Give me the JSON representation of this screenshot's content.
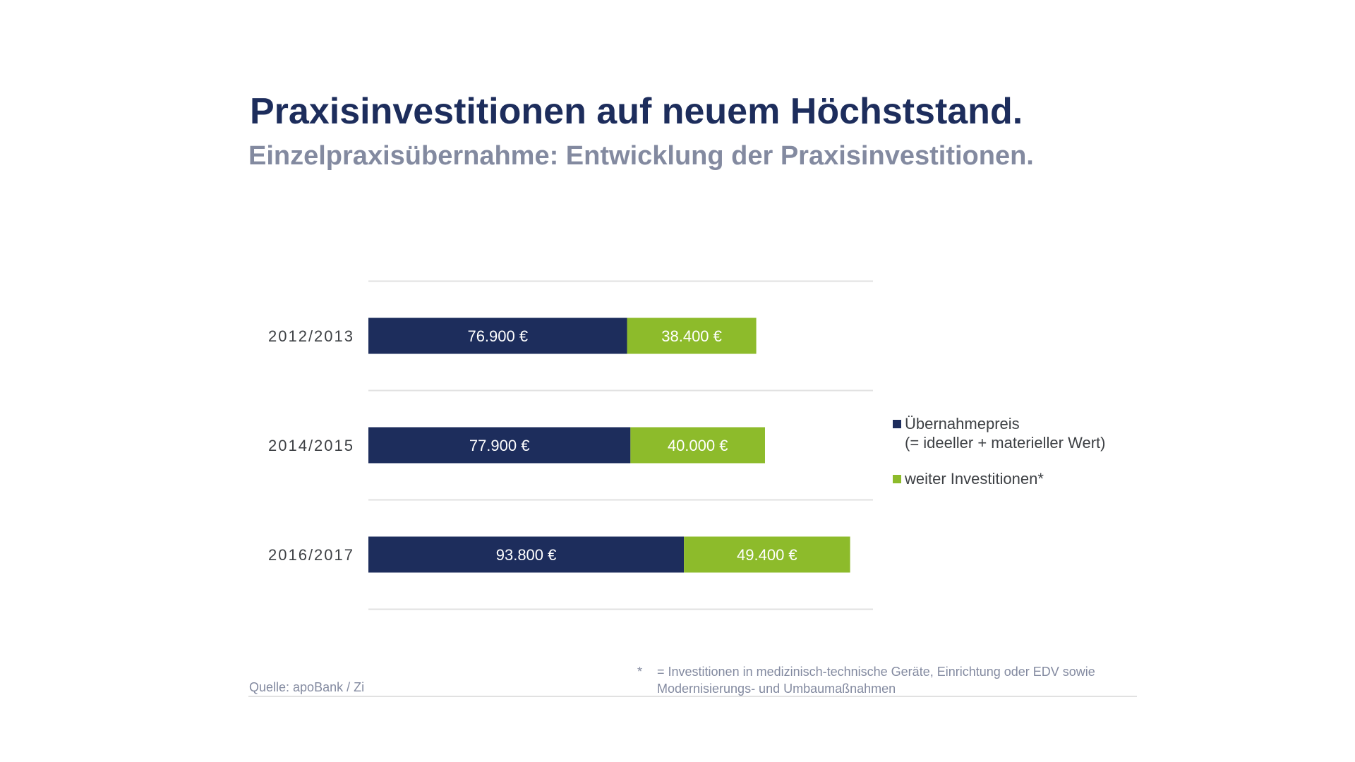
{
  "title": "Praxisinvestitionen auf neuem Höchststand.",
  "subtitle": "Einzelpraxisübernahme: Entwicklung der Praxisinvestitionen.",
  "colors": {
    "navy": "#1d2d5c",
    "green": "#8dbb2b",
    "gray_text": "#838aa0",
    "grid": "#e1e1e1"
  },
  "chart_data": {
    "type": "bar",
    "orientation": "horizontal",
    "stacked": true,
    "categories": [
      "2012/2013",
      "2014/2015",
      "2016/2017"
    ],
    "series": [
      {
        "name": "Übernahmepreis (= ideeller + materieller Wert)",
        "color": "#1d2d5c",
        "values": [
          76900,
          77900,
          93800
        ],
        "labels": [
          "76.900 €",
          "77.900 €",
          "93.800 €"
        ]
      },
      {
        "name": "weiter Investitionen*",
        "color": "#8dbb2b",
        "values": [
          38400,
          40000,
          49400
        ],
        "labels": [
          "38.400 €",
          "40.000 €",
          "49.400 €"
        ]
      }
    ],
    "xlim": [
      0,
      150000
    ],
    "grid": true,
    "legend_position": "right"
  },
  "legend": {
    "items": [
      {
        "lines": [
          "Übernahmepreis",
          "(= ideeller + materieller Wert)"
        ],
        "color": "#1d2d5c"
      },
      {
        "lines": [
          "weiter Investitionen*"
        ],
        "color": "#8dbb2b"
      }
    ]
  },
  "source": "Quelle: apoBank / Zi",
  "footnote": {
    "marker": "*",
    "lines": [
      "= Investitionen in medizinisch-technische Geräte, Einrichtung oder EDV sowie",
      "Modernisierungs- und Umbaumaßnahmen"
    ]
  }
}
